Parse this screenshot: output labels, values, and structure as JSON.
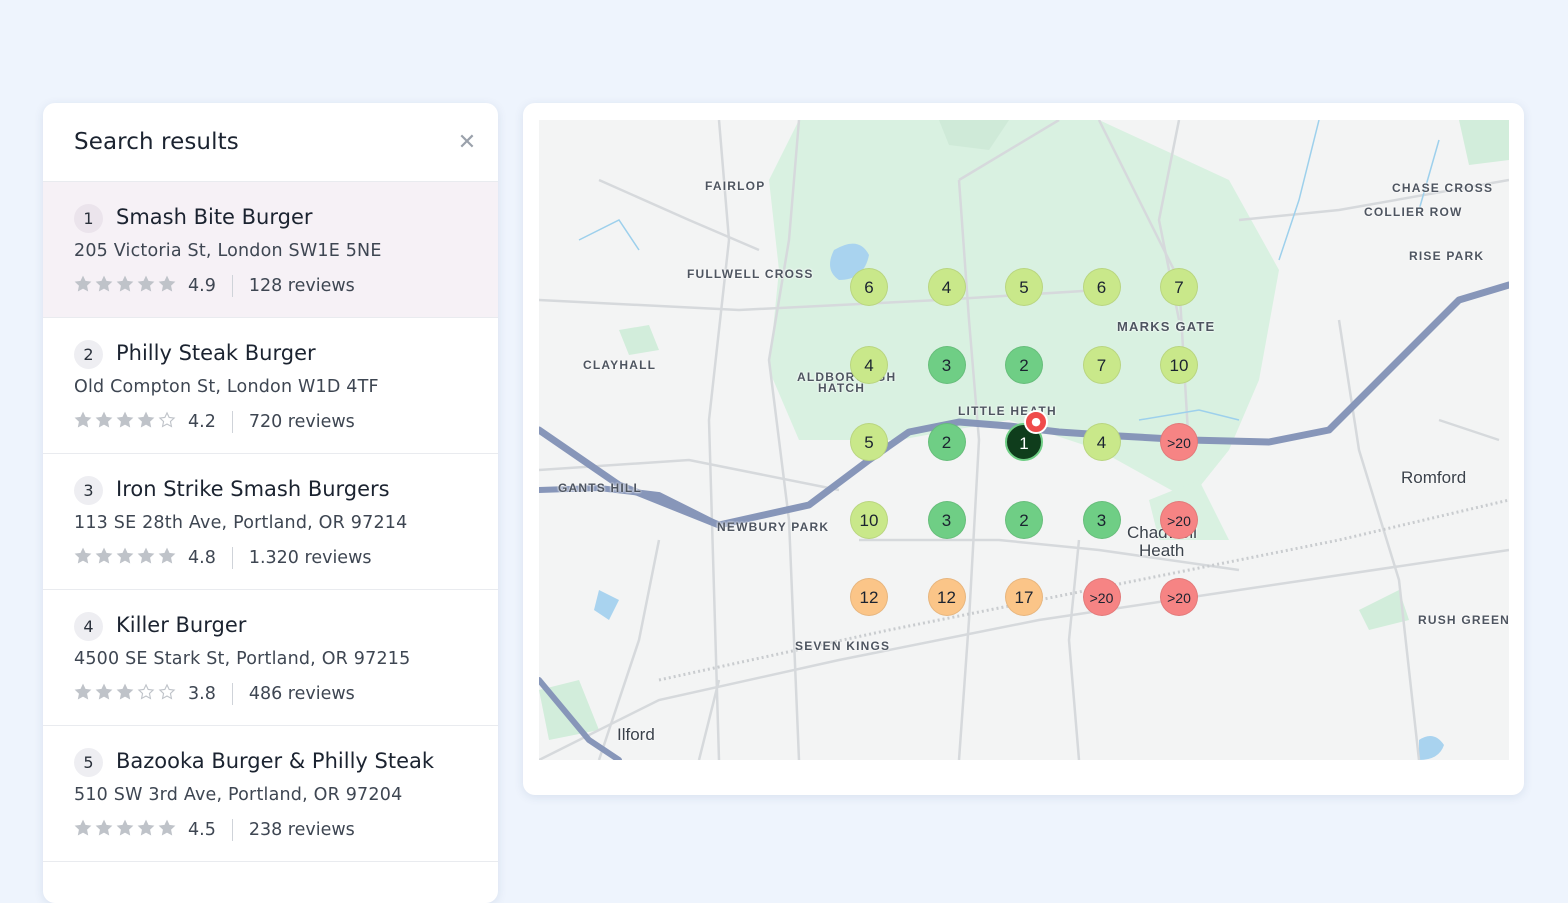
{
  "panel": {
    "title": "Search results",
    "close_icon": "close-icon",
    "results": [
      {
        "rank": "1",
        "name": "Smash Bite Burger",
        "address": "205 Victoria St, London SW1E 5NE",
        "rating": "4.9",
        "stars": 5,
        "reviews": "128 reviews",
        "active": true
      },
      {
        "rank": "2",
        "name": "Philly Steak Burger",
        "address": "Old Compton St, London W1D 4TF",
        "rating": "4.2",
        "stars": 4,
        "reviews": "720 reviews",
        "active": false
      },
      {
        "rank": "3",
        "name": "Iron Strike Smash Burgers",
        "address": "113 SE 28th Ave, Portland, OR 97214",
        "rating": "4.8",
        "stars": 5,
        "reviews": "1.320 reviews",
        "active": false
      },
      {
        "rank": "4",
        "name": "Killer Burger",
        "address": "4500 SE Stark St, Portland, OR 97215",
        "rating": "3.8",
        "stars": 3,
        "reviews": "486 reviews",
        "active": false
      },
      {
        "rank": "5",
        "name": "Bazooka Burger & Philly Steak",
        "address": "510 SW 3rd Ave, Portland, OR 97204",
        "rating": "4.5",
        "stars": 5,
        "reviews": "238 reviews",
        "active": false
      }
    ]
  },
  "map": {
    "places": [
      "FAIRLOP",
      "FULLWELL CROSS",
      "CLAYHALL",
      "ALDBOROUGH",
      "HATCH",
      "LITTLE HEATH",
      "MARKS GATE",
      "CHASE CROSS",
      "COLLIER ROW",
      "RISE PARK",
      "GANTS HILL",
      "NEWBURY PARK",
      "SEVEN KINGS",
      "RUSH GREEN"
    ],
    "towns": [
      "Romford",
      "Ilford",
      "Chadwell",
      "Heath"
    ],
    "grid": [
      [
        "6",
        "4",
        "5",
        "6",
        "7"
      ],
      [
        "4",
        "3",
        "2",
        "7",
        "10"
      ],
      [
        "5",
        "2",
        "1",
        "4",
        ">20"
      ],
      [
        "10",
        "3",
        "2",
        "3",
        ">20"
      ],
      [
        "12",
        "12",
        "17",
        ">20",
        ">20"
      ]
    ],
    "rank_colors": {
      "top": "#0f3d1c",
      "good": "#6fce85",
      "ok": "#c9e88a",
      "mid": "#fbc588",
      "bad": "#f68484"
    },
    "marker_icon": "location-marker-icon"
  }
}
